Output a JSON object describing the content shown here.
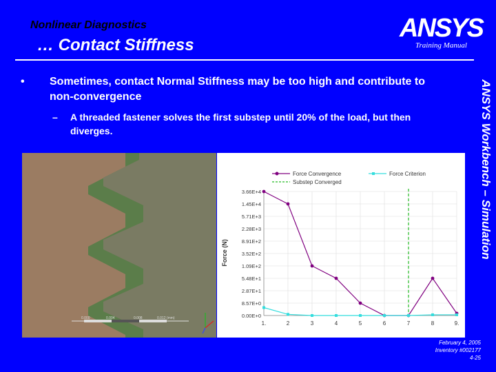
{
  "header": {
    "title": "Nonlinear Diagnostics",
    "subtitle": "… Contact Stiffness",
    "logo_text": "ANSYS",
    "training_label": "Training Manual"
  },
  "side_label": "ANSYS Workbench – Simulation",
  "bullets": {
    "main": "Sometimes, contact Normal Stiffness may be too high and contribute to non-convergence",
    "sub": "A threaded fastener solves the first substep until 20% of the load, but then diverges."
  },
  "footer": {
    "date": "February 4, 2005",
    "inventory": "Inventory #002177",
    "page": "4-25"
  },
  "picture": {
    "scale_labels": [
      "0.000",
      "0.004",
      "0.008",
      "0.012 (mm)"
    ]
  },
  "colors": {
    "background": "#0000ff",
    "force_convergence": "#800080",
    "force_criterion": "#33dddd",
    "substep_converged": "#22bb22",
    "part": "#7a7b63",
    "thread": "#5a7e4a"
  },
  "chart_data": {
    "type": "line",
    "ylabel": "Force (N)",
    "legend": [
      "Force Convergence",
      "Force Criterion",
      "Substep Converged"
    ],
    "y_tick_labels": [
      "0.00E+0",
      "8.57E+0",
      "2.87E+1",
      "5.48E+1",
      "1.09E+2",
      "3.52E+2",
      "8.91E+2",
      "2.28E+3",
      "5.71E+3",
      "1.45E+4",
      "3.66E+4"
    ],
    "x_tick_labels": [
      "1.",
      "2",
      "3",
      "4",
      "5",
      "6",
      "7",
      "8",
      "9."
    ],
    "x": [
      1,
      2,
      3,
      4,
      5,
      6,
      7,
      8,
      9
    ],
    "series": [
      {
        "name": "Force Convergence",
        "values": [
          36600,
          14500,
          109,
          54.8,
          8.57,
          0,
          0,
          54.8,
          1.5
        ]
      },
      {
        "name": "Force Criterion",
        "values": [
          5.48,
          0.8,
          0,
          0,
          0,
          0,
          0,
          0.5,
          0.5
        ]
      }
    ],
    "substep_converged_x": 7
  }
}
